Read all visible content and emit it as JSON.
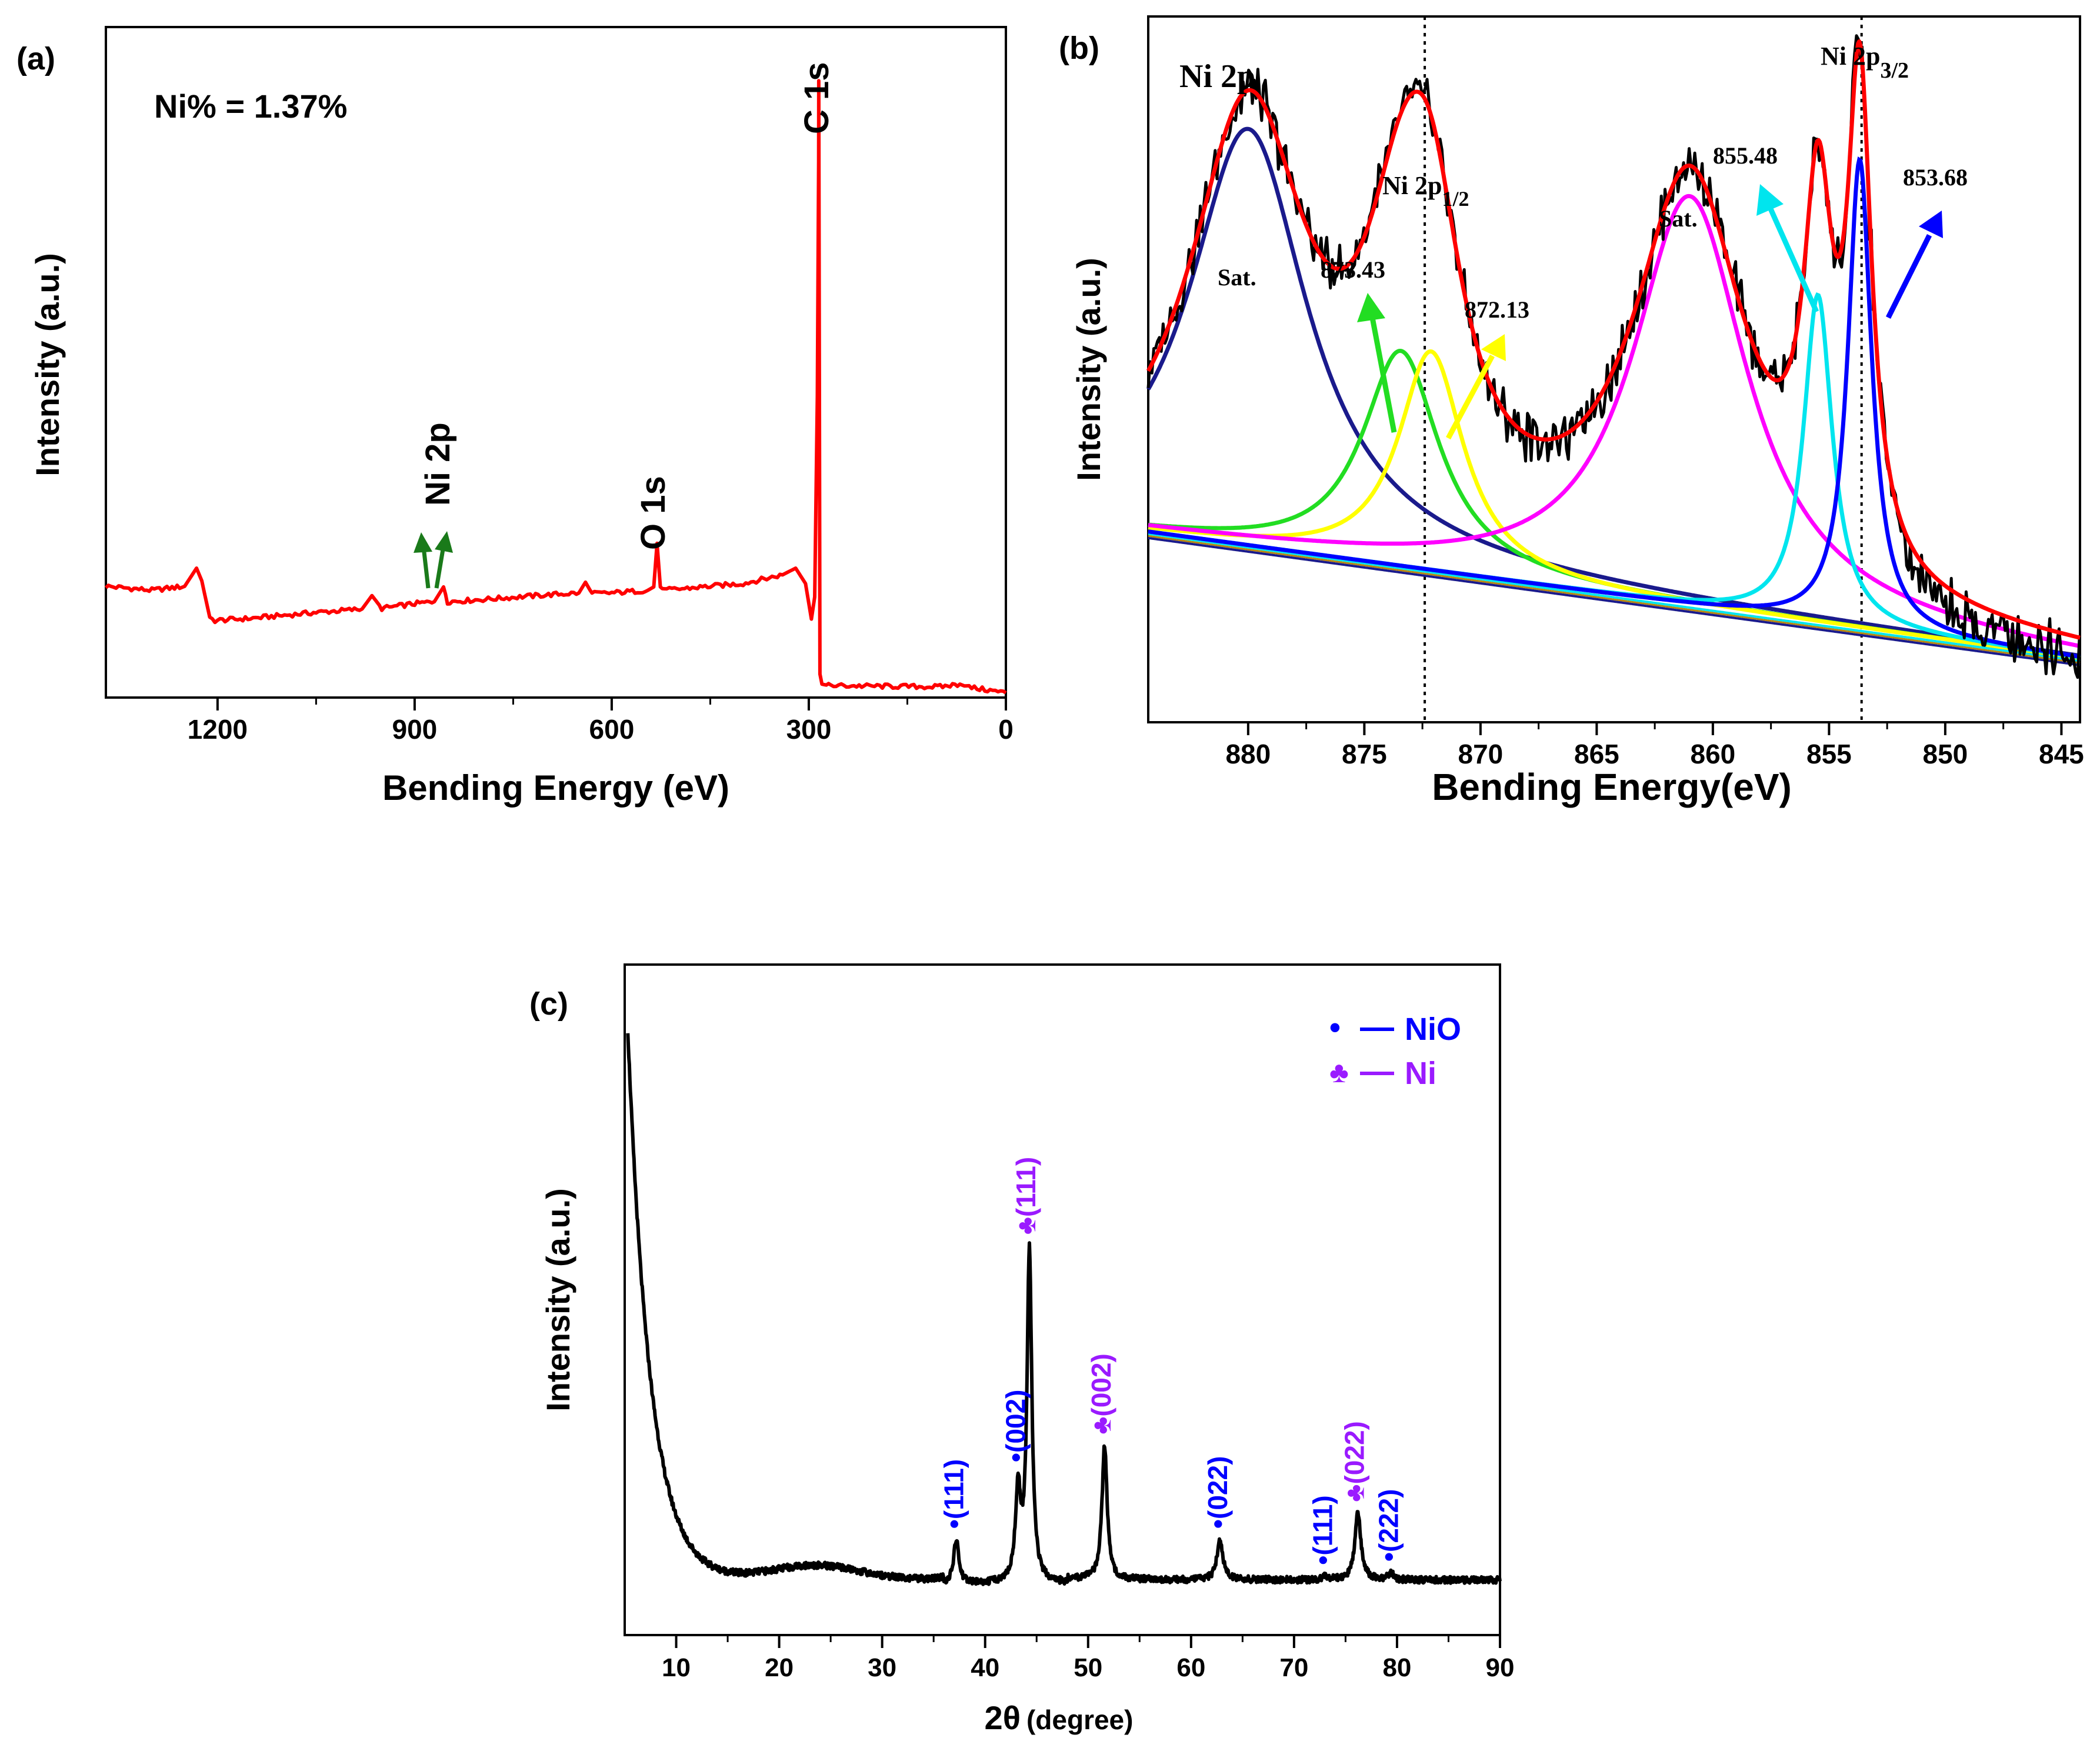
{
  "colors": {
    "survey": "#ff0000",
    "arrow_green": "#1a7a1a",
    "black": "#000000",
    "red_fit": "#ff0000",
    "navy": "#1a1a8c",
    "green": "#22dd22",
    "yellow": "#ffff00",
    "magenta": "#ff00ff",
    "cyan": "#00e5ee",
    "blue": "#0000ff",
    "nio": "#0000ff",
    "ni": "#9a1aff"
  },
  "chart_data": [
    {
      "id": "a",
      "type": "line",
      "panel_label": "(a)",
      "xlabel": "Bending Energy (eV)",
      "ylabel": "Intensity (a.u.)",
      "xlim": [
        1370,
        0
      ],
      "ylim": [
        0,
        100
      ],
      "x_ticks": [
        1200,
        900,
        600,
        300,
        0
      ],
      "x_tick_labels": [
        "1200",
        "900",
        "600",
        "300",
        "0"
      ],
      "annotation_ni_percent": "Ni% = 1.37%",
      "peak_labels": [
        {
          "text": "Ni 2p",
          "x": 855
        },
        {
          "text": "O 1s",
          "x": 531
        },
        {
          "text": "C 1s",
          "x": 284.8
        }
      ],
      "series": [
        {
          "name": "survey",
          "x": [
            1370,
            1300,
            1250,
            1232,
            1224,
            1212,
            1204,
            1150,
            1050,
            980,
            965,
            950,
            900,
            870,
            856,
            850,
            800,
            700,
            650,
            640,
            630,
            600,
            545,
            536,
            531,
            526,
            520,
            450,
            400,
            340,
            320,
            305,
            296,
            291,
            287,
            285,
            284.8,
            283,
            280,
            270,
            200,
            100,
            70,
            60,
            0
          ],
          "y": [
            16.6,
            16.0,
            16.6,
            19.3,
            17.4,
            12.0,
            11.5,
            11.8,
            12.7,
            13.2,
            15.2,
            13.3,
            14.0,
            14.3,
            16.5,
            14.3,
            14.6,
            15.3,
            15.6,
            17.2,
            15.5,
            15.6,
            16.0,
            16.5,
            23.0,
            16.5,
            16.0,
            16.6,
            17.0,
            18.3,
            19.3,
            17.0,
            11.7,
            15.0,
            45.0,
            80.0,
            92.0,
            3.5,
            2.0,
            1.8,
            1.7,
            1.6,
            2.0,
            1.6,
            0.7
          ]
        }
      ]
    },
    {
      "id": "b",
      "type": "line",
      "panel_label": "(b)",
      "title": "Ni 2p",
      "xlabel": "Bending Energy(eV)",
      "ylabel": "Intensity (a.u.)",
      "xlim": [
        884.3,
        844.2
      ],
      "ylim": [
        0,
        100
      ],
      "x_ticks": [
        880,
        875,
        870,
        865,
        860,
        855,
        850,
        845
      ],
      "x_tick_labels": [
        "880",
        "875",
        "870",
        "865",
        "860",
        "855",
        "850",
        "845"
      ],
      "dotted_lines_x": [
        872.4,
        853.6
      ],
      "annotations": [
        {
          "text": "Sat.",
          "x": 880.2
        },
        {
          "text": "873.43",
          "x": 874.2
        },
        {
          "text": "872.13",
          "x": 869.0
        },
        {
          "text": "Sat.",
          "x": 861.2
        },
        {
          "text": "855.48",
          "x": 856.8
        },
        {
          "text": "853.68",
          "x": 850.0
        }
      ],
      "peak_main_1": "Ni 2p",
      "peak_sub_1": "1/2",
      "peak_main_2": "Ni 2p",
      "peak_sub_2": "3/2",
      "background": {
        "start": [
          884.3,
          27.0
        ],
        "end": [
          844.2,
          9.0
        ]
      },
      "components": [
        {
          "name": "sat-1",
          "color_key": "navy",
          "center": 880.0,
          "height": 59.0,
          "width": 3.1
        },
        {
          "name": "peak-873.43",
          "color_key": "green",
          "center": 873.43,
          "height": 30.5,
          "width": 2.0
        },
        {
          "name": "peak-872.13",
          "color_key": "yellow",
          "center": 872.13,
          "height": 31.0,
          "width": 1.7
        },
        {
          "name": "sat-2",
          "color_key": "magenta",
          "center": 861.0,
          "height": 58.0,
          "width": 3.0
        },
        {
          "name": "peak-855.48",
          "color_key": "cyan",
          "center": 855.48,
          "height": 46.5,
          "width": 0.75
        },
        {
          "name": "peak-853.68",
          "color_key": "blue",
          "center": 853.68,
          "height": 66.5,
          "width": 0.62
        }
      ]
    },
    {
      "id": "c",
      "type": "line",
      "panel_label": "(c)",
      "xlabel_main": "2θ",
      "xlabel_unit": "(degree)",
      "ylabel": "Intensity (a.u.)",
      "xlim": [
        5,
        90
      ],
      "ylim": [
        0,
        100
      ],
      "x_ticks": [
        10,
        20,
        30,
        40,
        50,
        60,
        70,
        80,
        90
      ],
      "x_tick_labels": [
        "10",
        "20",
        "30",
        "40",
        "50",
        "60",
        "70",
        "80",
        "90"
      ],
      "legend": [
        {
          "symbol": "•",
          "text": "NiO",
          "color_key": "nio"
        },
        {
          "symbol": "♣",
          "text": "Ni",
          "color_key": "ni"
        }
      ],
      "peaks": [
        {
          "x": 37.2,
          "height": 6.5,
          "width": 0.3,
          "label": "(111)",
          "phase": "NiO",
          "symbol": "•"
        },
        {
          "x": 43.2,
          "height": 13.5,
          "width": 0.3,
          "label": "(002)",
          "phase": "NiO",
          "symbol": "•"
        },
        {
          "x": 44.3,
          "height": 49.5,
          "width": 0.28,
          "label": "(111)",
          "phase": "Ni",
          "symbol": "♣"
        },
        {
          "x": 51.6,
          "height": 20.0,
          "width": 0.3,
          "label": "(002)",
          "phase": "Ni",
          "symbol": "♣"
        },
        {
          "x": 62.8,
          "height": 6.0,
          "width": 0.35,
          "label": "(022)",
          "phase": "NiO",
          "symbol": "•"
        },
        {
          "x": 73.0,
          "height": 0.5,
          "width": 0.3,
          "label": "(111)",
          "phase": "NiO",
          "symbol": "•"
        },
        {
          "x": 76.2,
          "height": 10.0,
          "width": 0.35,
          "label": "(022)",
          "phase": "Ni",
          "symbol": "♣"
        },
        {
          "x": 79.4,
          "height": 1.0,
          "width": 0.3,
          "label": "(222)",
          "phase": "NiO",
          "symbol": "•"
        }
      ]
    }
  ]
}
